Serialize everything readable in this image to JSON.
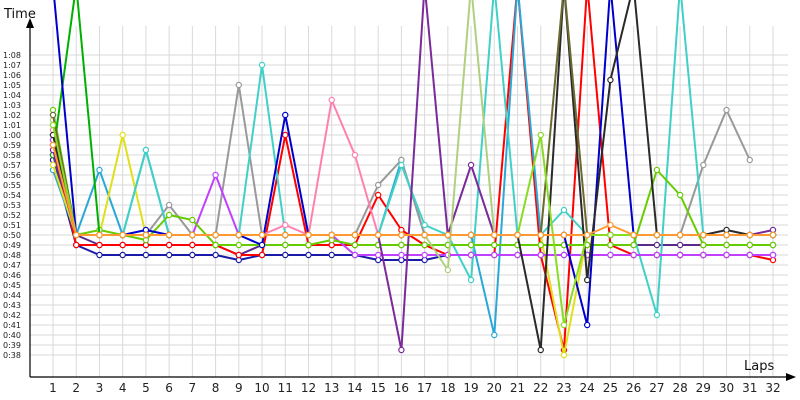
{
  "chart_data": {
    "type": "line",
    "title": "",
    "xlabel": "Laps",
    "ylabel": "Time",
    "x": [
      1,
      2,
      3,
      4,
      5,
      6,
      7,
      8,
      9,
      10,
      11,
      12,
      13,
      14,
      15,
      16,
      17,
      18,
      19,
      20,
      21,
      22,
      23,
      24,
      25,
      26,
      27,
      28,
      29,
      30,
      31,
      32
    ],
    "ylim": [
      "0:37",
      "1:09"
    ],
    "y_ticks": [
      "0:38",
      "0:39",
      "0:40",
      "0:41",
      "0:42",
      "0:43",
      "0:44",
      "0:45",
      "0:46",
      "0:47",
      "0:48",
      "0:49",
      "0:50",
      "0:51",
      "0:52",
      "0:53",
      "0:54",
      "0:55",
      "0:56",
      "0:57",
      "0:58",
      "0:59",
      "1:00",
      "1:01",
      "1:02",
      "1:03",
      "1:04",
      "1:05",
      "1:06",
      "1:07",
      "1:08"
    ],
    "grid": true,
    "series": [
      {
        "color": "#1a1aa8",
        "values": [
          "0:57.5",
          "0:49",
          "0:48",
          "0:48",
          "0:48",
          "0:48",
          "0:48",
          "0:48",
          "0:47.5",
          "0:48",
          "0:48",
          "0:48",
          "0:48",
          "0:48",
          "0:47.5",
          "0:47.5",
          "0:47.5",
          "0:48",
          "0:48",
          "0:48",
          "0:48",
          "0:48",
          "0:48",
          "0:48",
          "0:48",
          "0:48",
          "0:48",
          "0:48",
          "0:48",
          "0:48",
          "0:48",
          "0:48"
        ]
      },
      {
        "color": "#5b2a8a",
        "values": [
          "0:58",
          "0:50",
          "0:49",
          "0:49",
          "0:49",
          "0:49",
          "0:49",
          "0:49",
          "0:48",
          "0:49",
          "0:49",
          "0:49",
          "0:49",
          "0:49",
          "0:49",
          "0:49",
          "0:49",
          "0:49",
          "0:49",
          "0:49",
          "0:49",
          "0:49",
          "0:49",
          "0:49",
          "0:49",
          "0:49",
          "0:49",
          "0:49",
          "0:49",
          "0:49",
          "0:49",
          "0:49"
        ]
      },
      {
        "color": "#ff0000",
        "values": [
          "0:59",
          "0:49",
          "0:49",
          "0:49",
          "0:49",
          "0:49",
          "0:49",
          "0:49",
          "0:48",
          "0:48",
          "1:00",
          "0:49",
          "0:49",
          "0:49",
          "0:54",
          "0:50.5",
          "0:49",
          "0:48",
          "0:48",
          "0:48",
          "1:15",
          "0:48",
          "0:38.5",
          "1:15",
          "0:49",
          "0:48",
          "0:48",
          "0:48",
          "0:48",
          "0:48",
          "0:48",
          "0:47.5"
        ]
      },
      {
        "color": "#2aa8d8",
        "values": [
          "0:56.5",
          "0:50",
          "0:56.5",
          "0:50",
          "0:58.5",
          "0:50",
          "0:50",
          "0:50",
          "0:50",
          "0:50",
          "0:50",
          "0:50",
          "0:50",
          "0:50",
          "0:50",
          "0:57.5",
          "0:50",
          "0:50",
          "0:50",
          "0:40",
          "1:15",
          "0:50",
          "0:50",
          "0:50",
          "0:50",
          "0:50",
          "0:50",
          "0:50",
          "0:50",
          "0:50",
          "0:50",
          "0:50"
        ]
      },
      {
        "color": "#e0e01a",
        "values": [
          "0:57",
          "0:50",
          "0:50",
          "1:00",
          "0:50",
          "0:50",
          "0:50",
          "0:50",
          "0:50",
          "0:50",
          "0:50",
          "0:50",
          "0:50",
          "0:50",
          "0:50",
          "0:50",
          "0:50",
          "0:50",
          "0:50",
          "0:50",
          "0:50",
          "0:50",
          "0:38",
          "0:50",
          "0:50",
          "0:50",
          "0:50",
          "0:50",
          "0:50",
          "0:50",
          "0:50",
          "0:50"
        ]
      },
      {
        "color": "#999999",
        "values": [
          "1:01",
          "0:50",
          "0:50",
          "0:50",
          "0:50",
          "0:53",
          "0:50",
          "0:50",
          "1:05",
          "0:50",
          "0:50",
          "0:50",
          "0:50",
          "0:50",
          "0:55",
          "0:57.5",
          "0:50",
          "0:50",
          "0:50",
          "0:50",
          "0:50",
          "0:50",
          "0:50",
          "0:50",
          "0:50",
          "0:50",
          "0:50",
          "0:50",
          "0:57",
          "1:02.5",
          "0:57.5",
          ""
        ]
      },
      {
        "color": "#40d0c8",
        "values": [
          "1:00",
          "0:50",
          "0:50",
          "0:50",
          "0:58.5",
          "0:50",
          "0:50",
          "0:50",
          "0:50",
          "1:07",
          "0:50",
          "0:50",
          "0:50",
          "0:50",
          "0:50",
          "0:57",
          "0:51",
          "0:50",
          "0:45.5",
          "1:15",
          "0:50",
          "0:50",
          "0:52.5",
          "0:50",
          "0:50",
          "0:50",
          "0:42",
          "1:15",
          "0:50",
          "0:50",
          "0:50",
          "0:50"
        ]
      },
      {
        "color": "#ff80b0",
        "values": [
          "1:00.5",
          "0:50",
          "0:50",
          "0:50",
          "0:50",
          "0:50",
          "0:50",
          "0:50",
          "0:50",
          "0:50",
          "0:51",
          "0:50",
          "1:03.5",
          "0:58",
          "0:50",
          "0:50",
          "0:50",
          "0:50",
          "0:50",
          "0:50",
          "0:50",
          "0:50",
          "0:50",
          "0:50",
          "0:50",
          "0:50",
          "0:50",
          "0:50",
          "0:50",
          "0:50",
          "0:50",
          "0:50"
        ]
      },
      {
        "color": "#c040ff",
        "values": [
          "0:59.5",
          "0:50",
          "0:50",
          "0:50",
          "0:50",
          "0:50",
          "0:50",
          "0:56",
          "0:50",
          "0:50",
          "0:50",
          "0:50",
          "0:50",
          "0:48",
          "0:48",
          "0:48",
          "0:48",
          "0:48",
          "0:48",
          "0:48",
          "0:48",
          "0:48",
          "0:48",
          "0:48",
          "0:48",
          "0:48",
          "0:48",
          "0:48",
          "0:48",
          "0:48",
          "0:48",
          "0:48"
        ]
      },
      {
        "color": "#66cc00",
        "values": [
          "1:02.5",
          "0:50",
          "0:50.5",
          "0:50",
          "0:49.5",
          "0:52",
          "0:51.5",
          "0:49",
          "0:49",
          "0:49",
          "0:49",
          "0:49",
          "0:49.5",
          "0:49",
          "0:49",
          "0:49",
          "0:49",
          "0:49",
          "0:49",
          "0:49",
          "0:49",
          "0:49",
          "0:49",
          "0:49",
          "0:49",
          "0:49",
          "0:56.5",
          "0:54",
          "0:49",
          "0:49",
          "0:49",
          "0:49"
        ]
      },
      {
        "color": "#00b000",
        "values": [
          "0:58",
          "1:15",
          "0:50",
          "0:50",
          "0:50",
          "0:50",
          "0:50",
          "0:50",
          "0:50",
          "0:50",
          "0:50",
          "0:50",
          "0:50",
          "0:50",
          "0:50",
          "0:50",
          "0:50",
          "0:50",
          "0:50",
          "0:50",
          "0:50",
          "0:50",
          "0:50",
          "0:50",
          "0:50",
          "0:50",
          "0:50",
          "0:50",
          "0:50",
          "0:50",
          "0:50",
          "0:50"
        ]
      },
      {
        "color": "#0000cc",
        "values": [
          "1:15",
          "0:50",
          "0:50",
          "0:50",
          "0:50.5",
          "0:50",
          "0:50",
          "0:50",
          "0:50",
          "0:49",
          "1:02",
          "0:50",
          "0:50",
          "0:50",
          "0:50",
          "0:50",
          "0:50",
          "0:50",
          "0:50",
          "0:50",
          "0:50",
          "0:50",
          "0:50",
          "0:41",
          "1:15",
          "0:50",
          "0:50",
          "0:50",
          "0:50",
          "0:50",
          "0:50",
          "0:50"
        ]
      },
      {
        "color": "#7a2a9a",
        "values": [
          "0:58.5",
          "0:50",
          "0:50",
          "0:50",
          "0:50",
          "0:50",
          "0:50",
          "0:50",
          "0:50",
          "0:50",
          "0:50",
          "0:50",
          "0:50",
          "0:50",
          "0:50",
          "0:38.5",
          "1:15",
          "0:50",
          "0:57",
          "0:50",
          "0:50",
          "0:50",
          "0:50",
          "0:50",
          "0:50",
          "0:50",
          "0:50",
          "0:50",
          "0:50",
          "0:50",
          "0:50",
          "0:50.5"
        ]
      },
      {
        "color": "#b0d080",
        "values": [
          "1:01.5",
          "0:50",
          "0:50",
          "0:50",
          "0:50",
          "0:50",
          "0:50",
          "0:50",
          "0:50",
          "0:50",
          "0:50",
          "0:50",
          "0:50",
          "0:50",
          "0:50",
          "0:50",
          "0:50",
          "0:46.5",
          "1:15",
          "0:50",
          "0:50",
          "0:50",
          "0:50",
          "0:50",
          "0:50",
          "0:50",
          "0:50",
          "0:50",
          "0:50",
          "0:50",
          "0:50",
          "0:50"
        ]
      },
      {
        "color": "#2a2a2a",
        "values": [
          "1:00",
          "0:50",
          "0:50",
          "0:50",
          "0:50",
          "0:50",
          "0:50",
          "0:50",
          "0:50",
          "0:50",
          "0:50",
          "0:50",
          "0:50",
          "0:50",
          "0:50",
          "0:50",
          "0:50",
          "0:50",
          "0:50",
          "0:50",
          "0:50",
          "0:38.5",
          "1:15",
          "0:45.5",
          "1:05.5",
          "1:15",
          "0:50",
          "0:50",
          "0:50",
          "0:50.5",
          "0:50",
          "0:50"
        ]
      },
      {
        "color": "#6a6a30",
        "values": [
          "1:02",
          "0:50",
          "0:50",
          "0:50",
          "0:50",
          "0:50",
          "0:50",
          "0:50",
          "0:50",
          "0:50",
          "0:50",
          "0:50",
          "0:50",
          "0:50",
          "0:50",
          "0:50",
          "0:50",
          "0:50",
          "0:50",
          "0:50",
          "0:50",
          "0:50",
          "1:15",
          "0:50",
          "0:50",
          "0:50",
          "0:50",
          "0:50",
          "0:50",
          "0:50",
          "0:50",
          "0:50"
        ]
      },
      {
        "color": "#88dd22",
        "values": [
          "1:01",
          "0:50",
          "0:50",
          "0:50",
          "0:50",
          "0:50",
          "0:50",
          "0:50",
          "0:50",
          "0:50",
          "0:50",
          "0:50",
          "0:50",
          "0:50",
          "0:50",
          "0:50",
          "0:50",
          "0:50",
          "0:50",
          "0:50",
          "0:50",
          "1:00",
          "0:41",
          "0:50",
          "0:50",
          "0:50",
          "0:50",
          "0:50",
          "0:50",
          "0:50",
          "0:50",
          "0:50"
        ]
      },
      {
        "color": "#ff9933",
        "values": [
          "0:59",
          "0:50",
          "0:50",
          "0:50",
          "0:50",
          "0:50",
          "0:50",
          "0:50",
          "0:50",
          "0:50",
          "0:50",
          "0:50",
          "0:50",
          "0:50",
          "0:50",
          "0:50",
          "0:50",
          "0:50",
          "0:50",
          "0:50",
          "0:50",
          "0:50",
          "0:50",
          "0:50",
          "0:51",
          "0:50",
          "0:50",
          "0:50",
          "0:50",
          "0:50",
          "0:50",
          "0:50"
        ]
      }
    ]
  }
}
